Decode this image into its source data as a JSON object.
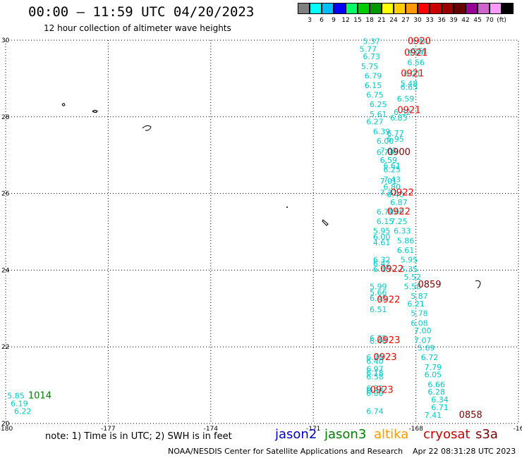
{
  "title": "00:00 – 11:59 UTC 04/20/2023",
  "subtitle": "12 hour collection of altimeter wave heights",
  "legend": {
    "colors": [
      "#7f7f7f",
      "#00ffff",
      "#00bfff",
      "#0000ff",
      "#00ff66",
      "#00cc00",
      "#009900",
      "#ffff00",
      "#ffcc00",
      "#ff9900",
      "#ff0000",
      "#cc0000",
      "#990000",
      "#660000",
      "#990099",
      "#cc66cc",
      "#ff99ff",
      "#000000"
    ],
    "labels": [
      "3",
      "6",
      "9",
      "12",
      "15",
      "18",
      "21",
      "24",
      "27",
      "30",
      "33",
      "36",
      "39",
      "42",
      "45",
      "70",
      "(ft)"
    ]
  },
  "chart_data": {
    "type": "scatter",
    "xlim": [
      -180,
      -165
    ],
    "ylim": [
      20,
      30
    ],
    "x_ticks": [
      "-180",
      "-177",
      "-174",
      "-171",
      "-168",
      "-16"
    ],
    "y_ticks": [
      "30",
      "28",
      "26",
      "24",
      "22",
      "20"
    ],
    "grid": true,
    "wave_heights": [
      {
        "lon": -169.3,
        "lat": 29.9,
        "v": "5.37"
      },
      {
        "lon": -167.9,
        "lat": 29.9,
        "v": "5.94"
      },
      {
        "lon": -169.4,
        "lat": 29.7,
        "v": "5.77"
      },
      {
        "lon": -167.9,
        "lat": 29.65,
        "v": "6.51"
      },
      {
        "lon": -168.0,
        "lat": 29.6,
        "v": "5.97"
      },
      {
        "lon": -169.3,
        "lat": 29.5,
        "v": "6.73"
      },
      {
        "lon": -168.0,
        "lat": 29.35,
        "v": "6.56"
      },
      {
        "lon": -169.35,
        "lat": 29.25,
        "v": "5.75"
      },
      {
        "lon": -168.1,
        "lat": 29.05,
        "v": "6.21"
      },
      {
        "lon": -169.25,
        "lat": 29.0,
        "v": "6.79"
      },
      {
        "lon": -168.2,
        "lat": 28.8,
        "v": "5.48"
      },
      {
        "lon": -169.25,
        "lat": 28.75,
        "v": "6.15"
      },
      {
        "lon": -168.2,
        "lat": 28.7,
        "v": "6.65"
      },
      {
        "lon": -169.2,
        "lat": 28.5,
        "v": "6.75"
      },
      {
        "lon": -168.3,
        "lat": 28.4,
        "v": "6.59"
      },
      {
        "lon": -169.1,
        "lat": 28.25,
        "v": "6.25"
      },
      {
        "lon": -168.4,
        "lat": 28.05,
        "v": "6.32"
      },
      {
        "lon": -169.1,
        "lat": 28.0,
        "v": "5.61"
      },
      {
        "lon": -168.5,
        "lat": 27.9,
        "v": "6.85"
      },
      {
        "lon": -169.2,
        "lat": 27.8,
        "v": "6.27"
      },
      {
        "lon": -169.0,
        "lat": 27.55,
        "v": "6.39"
      },
      {
        "lon": -168.6,
        "lat": 27.5,
        "v": "6.77"
      },
      {
        "lon": -168.6,
        "lat": 27.35,
        "v": "6.95"
      },
      {
        "lon": -168.9,
        "lat": 27.3,
        "v": "6.00"
      },
      {
        "lon": -168.8,
        "lat": 27.05,
        "v": "7.02"
      },
      {
        "lon": -168.9,
        "lat": 27.0,
        "v": "6.73"
      },
      {
        "lon": -168.8,
        "lat": 26.8,
        "v": "6.59"
      },
      {
        "lon": -168.7,
        "lat": 26.65,
        "v": "6.61"
      },
      {
        "lon": -168.7,
        "lat": 26.55,
        "v": "6.25"
      },
      {
        "lon": -168.7,
        "lat": 26.3,
        "v": "7.43"
      },
      {
        "lon": -168.8,
        "lat": 26.25,
        "v": "7.01"
      },
      {
        "lon": -168.7,
        "lat": 26.1,
        "v": "6.80"
      },
      {
        "lon": -168.8,
        "lat": 25.95,
        "v": "7.37"
      },
      {
        "lon": -168.6,
        "lat": 25.9,
        "v": "6.40"
      },
      {
        "lon": -168.5,
        "lat": 25.7,
        "v": "6.87"
      },
      {
        "lon": -168.9,
        "lat": 25.45,
        "v": "6.79"
      },
      {
        "lon": -168.6,
        "lat": 25.45,
        "v": "7.06"
      },
      {
        "lon": -168.9,
        "lat": 25.2,
        "v": "6.15"
      },
      {
        "lon": -168.5,
        "lat": 25.2,
        "v": "7.25"
      },
      {
        "lon": -169.0,
        "lat": 24.95,
        "v": "5.95"
      },
      {
        "lon": -168.4,
        "lat": 24.95,
        "v": "6.33"
      },
      {
        "lon": -169.0,
        "lat": 24.8,
        "v": "6.00"
      },
      {
        "lon": -168.3,
        "lat": 24.7,
        "v": "5.86"
      },
      {
        "lon": -169.0,
        "lat": 24.65,
        "v": "4.61"
      },
      {
        "lon": -168.3,
        "lat": 24.45,
        "v": "6.61"
      },
      {
        "lon": -169.0,
        "lat": 24.2,
        "v": "6.32"
      },
      {
        "lon": -168.2,
        "lat": 24.2,
        "v": "5.95"
      },
      {
        "lon": -169.0,
        "lat": 24.1,
        "v": "6.42"
      },
      {
        "lon": -168.2,
        "lat": 23.95,
        "v": "5.35"
      },
      {
        "lon": -169.0,
        "lat": 23.95,
        "v": "6.40"
      },
      {
        "lon": -168.1,
        "lat": 23.75,
        "v": "5.52"
      },
      {
        "lon": -169.1,
        "lat": 23.5,
        "v": "5.99"
      },
      {
        "lon": -168.1,
        "lat": 23.5,
        "v": "5.58"
      },
      {
        "lon": -169.1,
        "lat": 23.35,
        "v": "5.66"
      },
      {
        "lon": -167.9,
        "lat": 23.25,
        "v": "5.87"
      },
      {
        "lon": -169.1,
        "lat": 23.2,
        "v": "6.45"
      },
      {
        "lon": -168.0,
        "lat": 23.05,
        "v": "6.21"
      },
      {
        "lon": -169.1,
        "lat": 22.9,
        "v": "6.51"
      },
      {
        "lon": -167.9,
        "lat": 22.8,
        "v": "5.78"
      },
      {
        "lon": -167.9,
        "lat": 22.55,
        "v": "6.08"
      },
      {
        "lon": -167.8,
        "lat": 22.35,
        "v": "7.00"
      },
      {
        "lon": -169.1,
        "lat": 22.15,
        "v": "6.75"
      },
      {
        "lon": -167.8,
        "lat": 22.1,
        "v": "7.07"
      },
      {
        "lon": -169.1,
        "lat": 22.08,
        "v": "6.46"
      },
      {
        "lon": -167.7,
        "lat": 21.9,
        "v": "5.69"
      },
      {
        "lon": -167.6,
        "lat": 21.65,
        "v": "6.72"
      },
      {
        "lon": -169.2,
        "lat": 21.65,
        "v": "6.20"
      },
      {
        "lon": -169.2,
        "lat": 21.55,
        "v": "6.40"
      },
      {
        "lon": -167.5,
        "lat": 21.4,
        "v": "7.79"
      },
      {
        "lon": -169.2,
        "lat": 21.35,
        "v": "6.97"
      },
      {
        "lon": -169.2,
        "lat": 21.25,
        "v": "6.18"
      },
      {
        "lon": -167.5,
        "lat": 21.2,
        "v": "6.05"
      },
      {
        "lon": -169.2,
        "lat": 21.15,
        "v": "6.58"
      },
      {
        "lon": -167.4,
        "lat": 20.95,
        "v": "6.66"
      },
      {
        "lon": -169.2,
        "lat": 20.85,
        "v": "6.32"
      },
      {
        "lon": -169.2,
        "lat": 20.78,
        "v": "6.38"
      },
      {
        "lon": -167.4,
        "lat": 20.75,
        "v": "6.28"
      },
      {
        "lon": -169.2,
        "lat": 20.72,
        "v": "6.00"
      },
      {
        "lon": -167.3,
        "lat": 20.55,
        "v": "6.34"
      },
      {
        "lon": -167.3,
        "lat": 20.35,
        "v": "6.71"
      },
      {
        "lon": -169.2,
        "lat": 20.25,
        "v": "6.74"
      },
      {
        "lon": -167.5,
        "lat": 20.15,
        "v": "7.41"
      },
      {
        "lon": -179.7,
        "lat": 20.65,
        "v": "5.85"
      },
      {
        "lon": -179.6,
        "lat": 20.45,
        "v": "6.19"
      },
      {
        "lon": -179.5,
        "lat": 20.25,
        "v": "6.22"
      }
    ],
    "times": [
      {
        "lon": -167.9,
        "lat": 29.9,
        "v": "0920",
        "c": "#ff0000"
      },
      {
        "lon": -168.0,
        "lat": 29.6,
        "v": "0921",
        "c": "#ff0000"
      },
      {
        "lon": -168.1,
        "lat": 29.05,
        "v": "0921",
        "c": "#ff0000"
      },
      {
        "lon": -168.2,
        "lat": 28.1,
        "v": "0921",
        "c": "#ff0000"
      },
      {
        "lon": -168.5,
        "lat": 27.0,
        "v": "0900",
        "c": "#800000"
      },
      {
        "lon": -168.4,
        "lat": 25.95,
        "v": "0922",
        "c": "#ff0000"
      },
      {
        "lon": -168.5,
        "lat": 25.45,
        "v": "0922",
        "c": "#ff0000"
      },
      {
        "lon": -168.7,
        "lat": 23.95,
        "v": "0922",
        "c": "#ff0000"
      },
      {
        "lon": -167.6,
        "lat": 23.55,
        "v": "0859",
        "c": "#800000"
      },
      {
        "lon": -168.8,
        "lat": 23.15,
        "v": "0922",
        "c": "#ff0000"
      },
      {
        "lon": -168.8,
        "lat": 22.1,
        "v": "0923",
        "c": "#ff0000"
      },
      {
        "lon": -168.9,
        "lat": 21.65,
        "v": "0923",
        "c": "#ff0000"
      },
      {
        "lon": -169.0,
        "lat": 20.8,
        "v": "0923",
        "c": "#ff0000"
      },
      {
        "lon": -166.4,
        "lat": 20.15,
        "v": "0858",
        "c": "#800000"
      },
      {
        "lon": -179.0,
        "lat": 20.65,
        "v": "1014",
        "c": "#008000"
      }
    ]
  },
  "footer": {
    "note": "note:  1) Time is in UTC;  2) SWH is in feet",
    "satellites": [
      {
        "name": "jason2",
        "color": "#0000cc"
      },
      {
        "name": "jason3",
        "color": "#008000"
      },
      {
        "name": "altika",
        "color": "#ff9900"
      },
      {
        "name": "cryosat",
        "color": "#cc0000"
      },
      {
        "name": "s3a",
        "color": "#800000"
      }
    ],
    "credit": "NOAA/NESDIS Center for Satellite Applications and Research",
    "timestamp": "Apr 22 08:31:28 UTC 2023"
  }
}
